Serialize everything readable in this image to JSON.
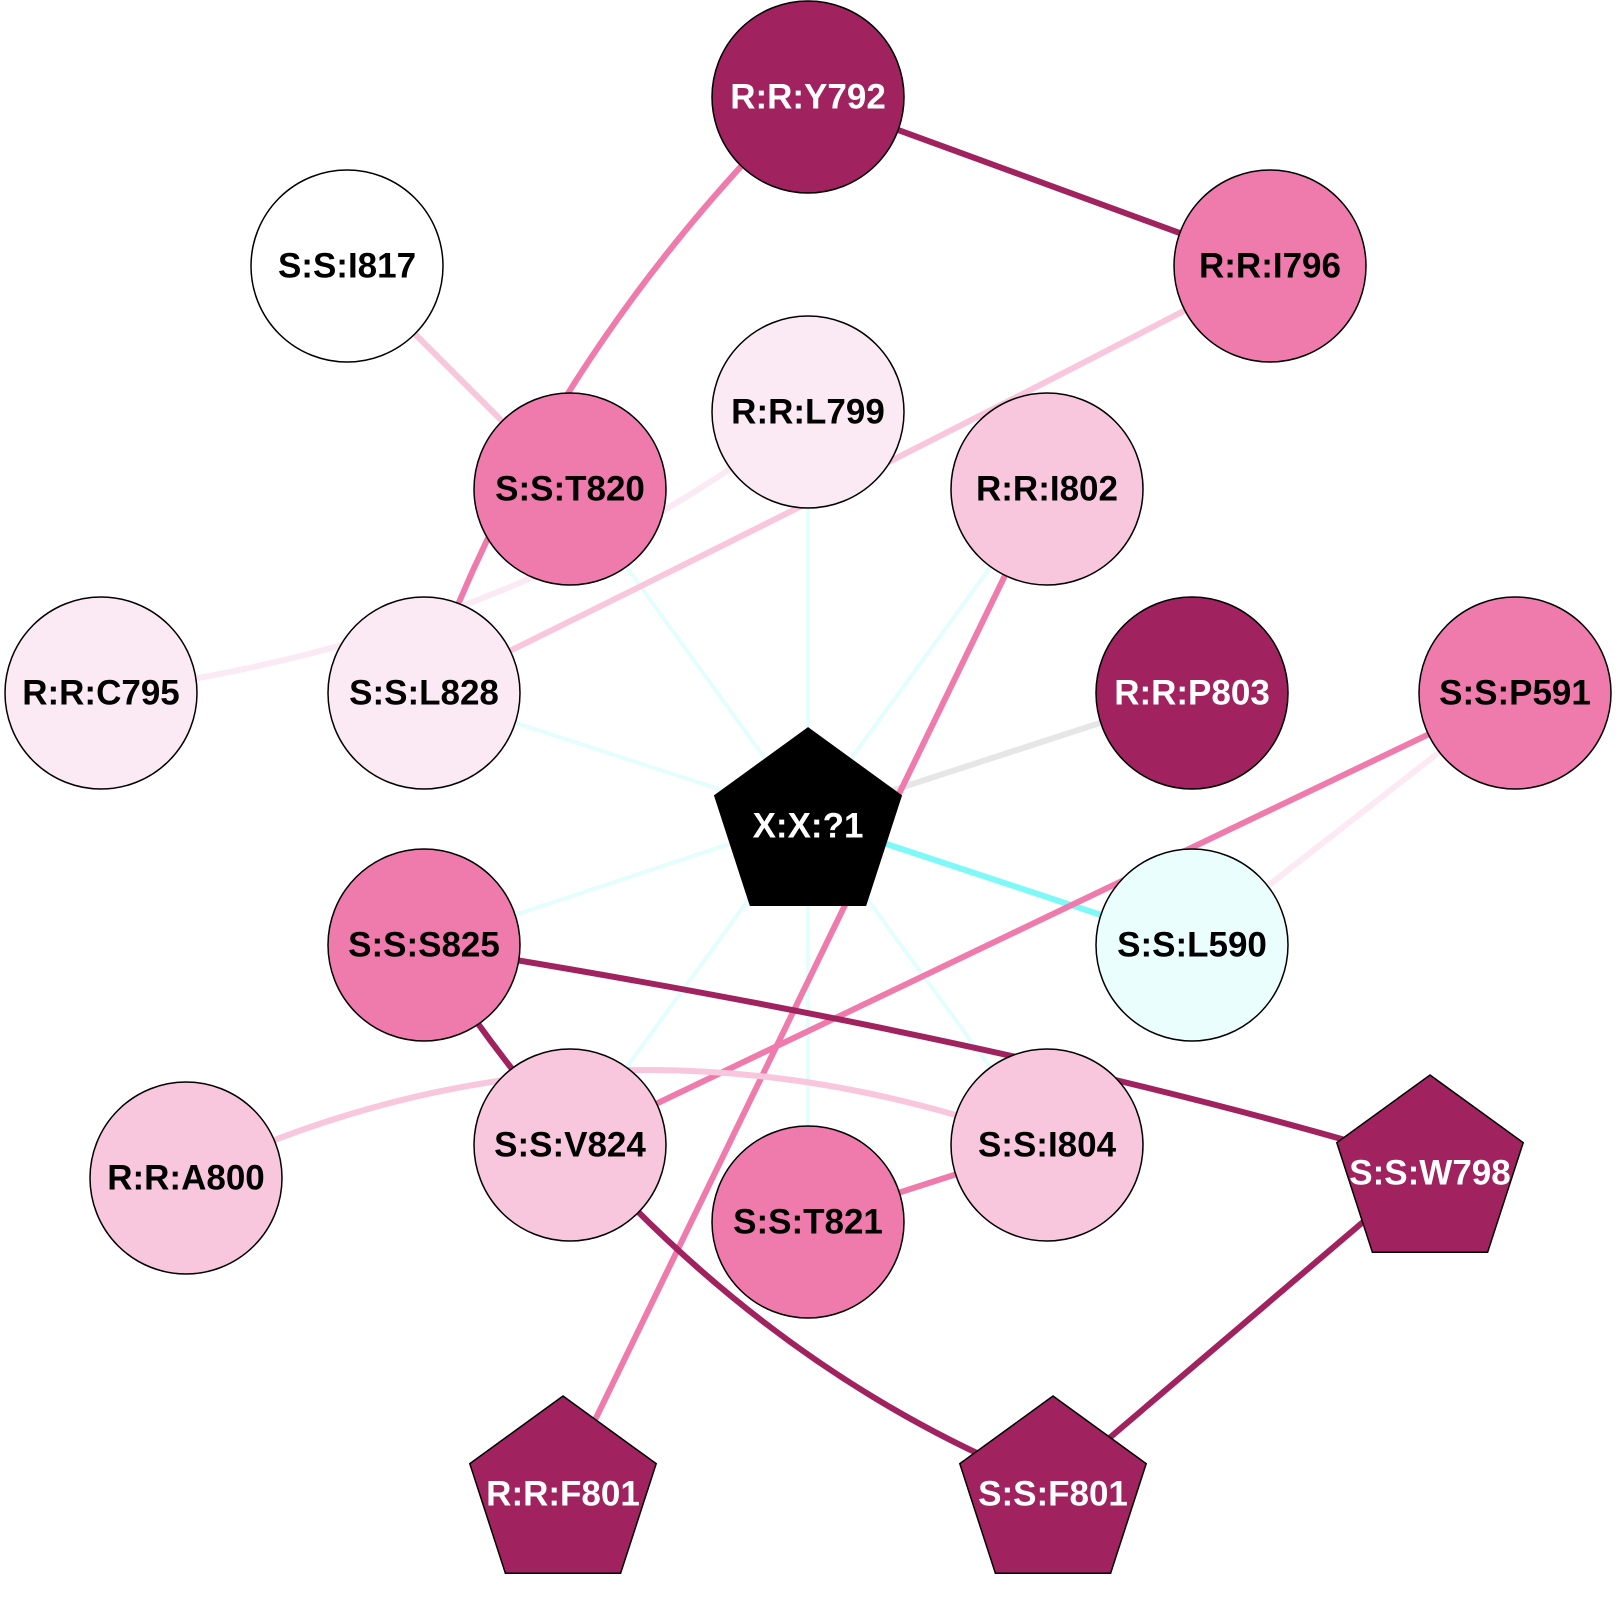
{
  "colors": {
    "dark": "#A0225F",
    "pink": "#EF7BAC",
    "light": "#F8C6DD",
    "pale": "#FBEAF3",
    "white": "#FFFFFF",
    "cyan_fill": "#EAFEFE",
    "black": "#000000",
    "cyan_edge": "#7FF8F8",
    "cyan_edge_light": "#E4FDFD",
    "gray_edge": "#E6E6E6"
  },
  "nodes": [
    {
      "id": "Y792",
      "label": "R:R:Y792",
      "shape": "circle",
      "fill": "dark"
    },
    {
      "id": "I817",
      "label": "S:S:I817",
      "shape": "circle",
      "fill": "white"
    },
    {
      "id": "I796",
      "label": "R:R:I796",
      "shape": "circle",
      "fill": "pink"
    },
    {
      "id": "L799",
      "label": "R:R:L799",
      "shape": "circle",
      "fill": "pale"
    },
    {
      "id": "T820",
      "label": "S:S:T820",
      "shape": "circle",
      "fill": "pink"
    },
    {
      "id": "I802",
      "label": "R:R:I802",
      "shape": "circle",
      "fill": "light"
    },
    {
      "id": "C795",
      "label": "R:R:C795",
      "shape": "circle",
      "fill": "pale"
    },
    {
      "id": "L828",
      "label": "S:S:L828",
      "shape": "circle",
      "fill": "pale"
    },
    {
      "id": "P803",
      "label": "R:R:P803",
      "shape": "circle",
      "fill": "dark"
    },
    {
      "id": "P591",
      "label": "S:S:P591",
      "shape": "circle",
      "fill": "pink"
    },
    {
      "id": "X1",
      "label": "X:X:?1",
      "shape": "pentagon",
      "fill": "black"
    },
    {
      "id": "S825",
      "label": "S:S:S825",
      "shape": "circle",
      "fill": "pink"
    },
    {
      "id": "L590",
      "label": "S:S:L590",
      "shape": "circle",
      "fill": "cyan_fill"
    },
    {
      "id": "A800",
      "label": "R:R:A800",
      "shape": "circle",
      "fill": "light"
    },
    {
      "id": "V824",
      "label": "S:S:V824",
      "shape": "circle",
      "fill": "light"
    },
    {
      "id": "I804",
      "label": "S:S:I804",
      "shape": "circle",
      "fill": "light"
    },
    {
      "id": "W798",
      "label": "S:S:W798",
      "shape": "pentagon",
      "fill": "dark"
    },
    {
      "id": "T821",
      "label": "S:S:T821",
      "shape": "circle",
      "fill": "pink"
    },
    {
      "id": "RF801",
      "label": "R:R:F801",
      "shape": "pentagon",
      "fill": "dark"
    },
    {
      "id": "SF801",
      "label": "S:S:F801",
      "shape": "pentagon",
      "fill": "dark"
    }
  ],
  "edges": [
    {
      "source": "X1",
      "target": "L799",
      "color": "cyan_edge_light"
    },
    {
      "source": "X1",
      "target": "T820",
      "color": "cyan_edge_light"
    },
    {
      "source": "X1",
      "target": "I802",
      "color": "cyan_edge_light"
    },
    {
      "source": "X1",
      "target": "L828",
      "color": "cyan_edge_light"
    },
    {
      "source": "X1",
      "target": "S825",
      "color": "cyan_edge_light"
    },
    {
      "source": "X1",
      "target": "V824",
      "color": "cyan_edge_light"
    },
    {
      "source": "X1",
      "target": "T821",
      "color": "cyan_edge_light"
    },
    {
      "source": "X1",
      "target": "I804",
      "color": "cyan_edge_light"
    },
    {
      "source": "X1",
      "target": "L590",
      "color": "cyan_edge"
    },
    {
      "source": "X1",
      "target": "P803",
      "color": "gray_edge"
    },
    {
      "source": "Y792",
      "target": "I796",
      "color": "dark"
    },
    {
      "source": "Y792",
      "target": "L828",
      "color": "pink"
    },
    {
      "source": "I817",
      "target": "T820",
      "color": "light"
    },
    {
      "source": "I796",
      "target": "L828",
      "color": "light"
    },
    {
      "source": "L799",
      "target": "C795",
      "color": "pale"
    },
    {
      "source": "I802",
      "target": "RF801",
      "color": "pink"
    },
    {
      "source": "P591",
      "target": "V824",
      "color": "pink"
    },
    {
      "source": "P591",
      "target": "L590",
      "color": "pale"
    },
    {
      "source": "S825",
      "target": "W798",
      "color": "dark"
    },
    {
      "source": "S825",
      "target": "SF801",
      "color": "dark"
    },
    {
      "source": "A800",
      "target": "I804",
      "color": "light"
    },
    {
      "source": "I804",
      "target": "T821",
      "color": "pink"
    },
    {
      "source": "W798",
      "target": "SF801",
      "color": "dark"
    }
  ]
}
